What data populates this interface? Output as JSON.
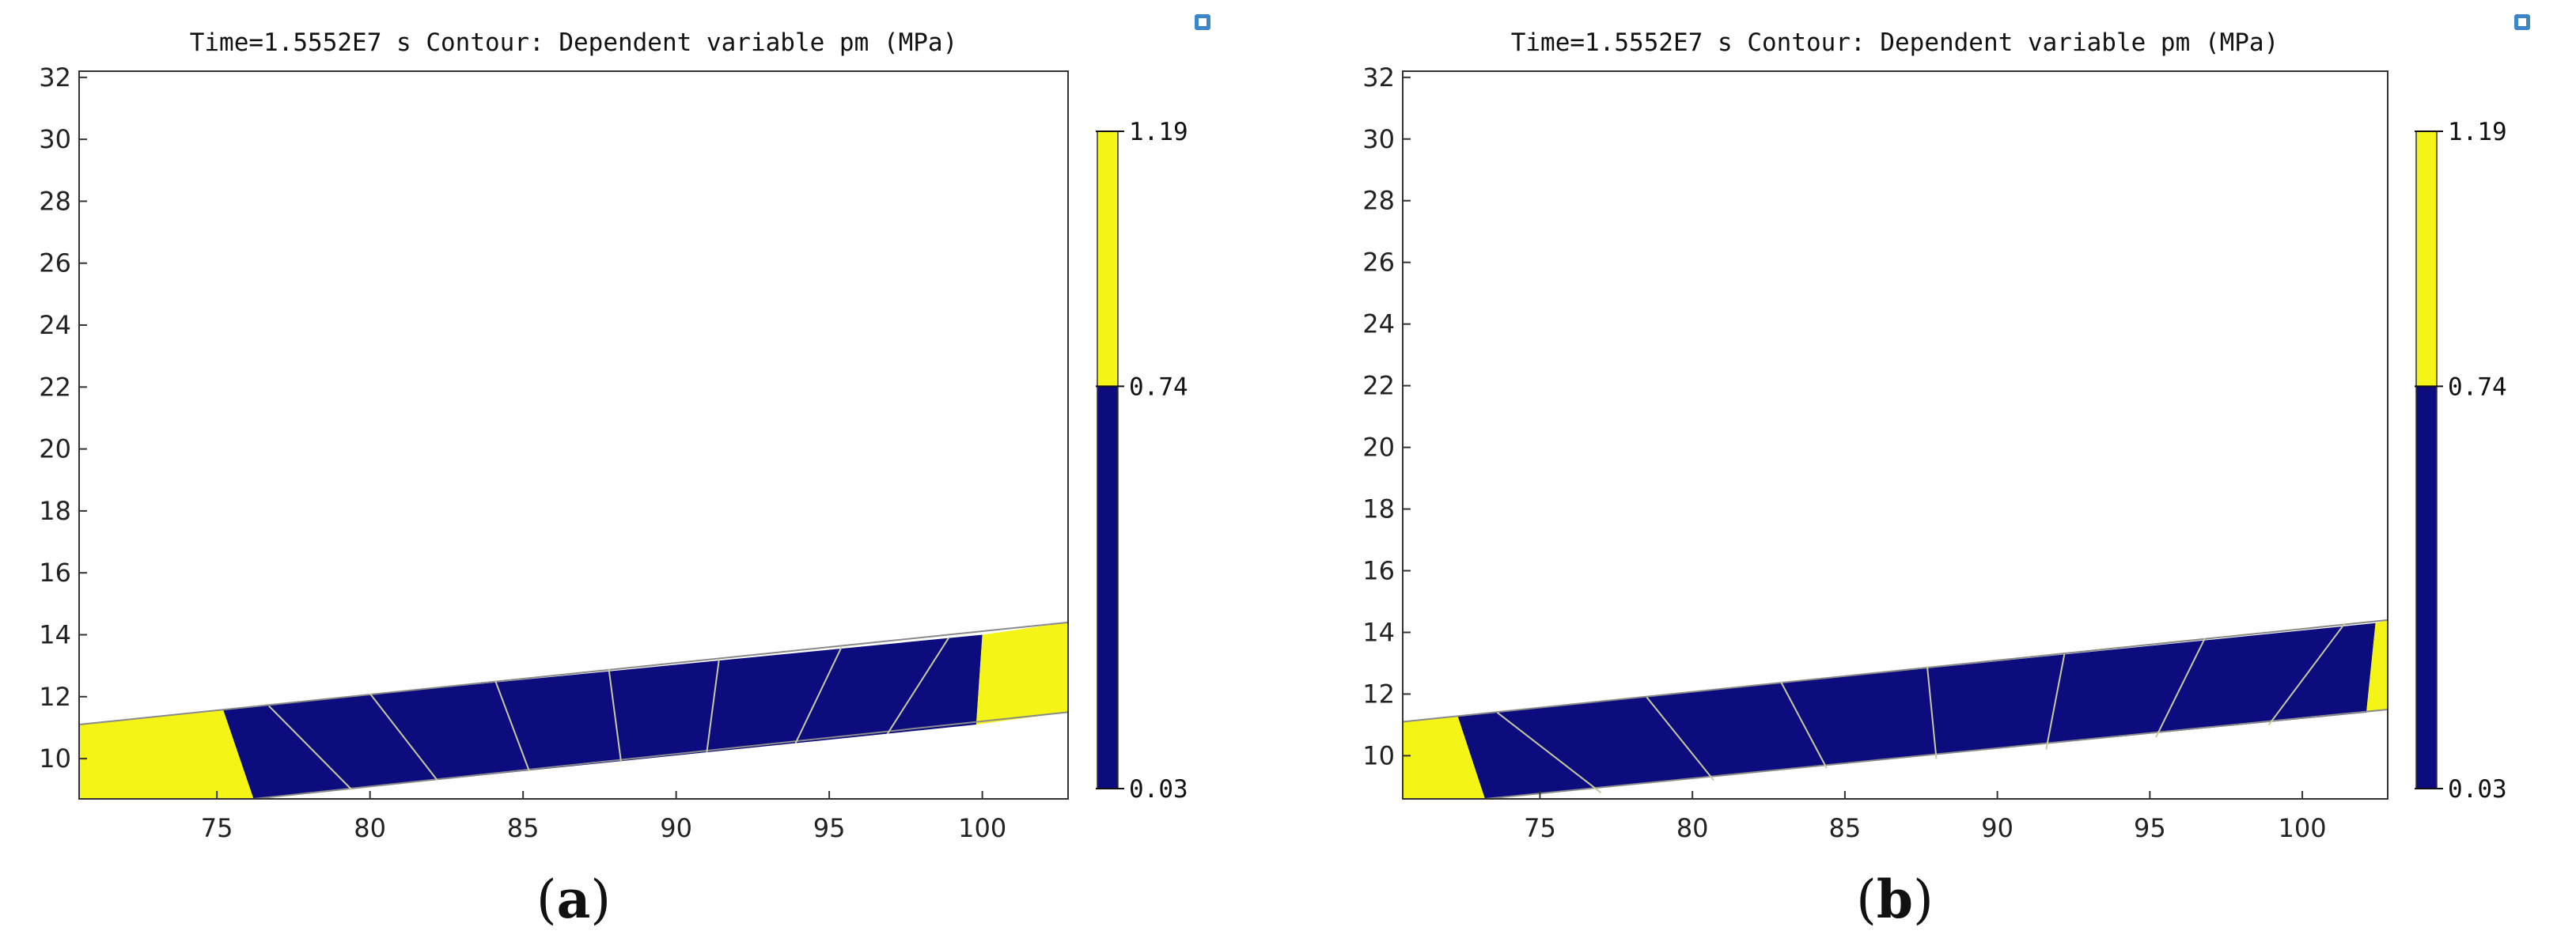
{
  "colors": {
    "high": "#f4f416",
    "low": "#0c0c7e",
    "band_edge": "#8a8a8a",
    "sub_boundary": "#c9c9a0",
    "frame": "#333333",
    "corner_icon": "#3a86c8"
  },
  "chart_data": [
    {
      "type": "contour",
      "panel": "a",
      "panel_label": "a",
      "title": "Time=1.5552E7 s   Contour: Dependent variable pm (MPa)",
      "xlabel": "",
      "ylabel": "",
      "xlim": [
        70.5,
        102.8
      ],
      "ylim": [
        8.7,
        32.2
      ],
      "xticks": [
        75,
        80,
        85,
        90,
        95,
        100
      ],
      "yticks": [
        10,
        12,
        14,
        16,
        18,
        20,
        22,
        24,
        26,
        28,
        30,
        32
      ],
      "colorbar": {
        "min": 0.03,
        "mid": 0.74,
        "max": 1.19,
        "labels": [
          "1.19",
          "0.74",
          "0.03"
        ]
      },
      "band": {
        "top_left": [
          70.5,
          11.1
        ],
        "top_right": [
          102.8,
          14.4
        ],
        "bottom_left": [
          76.2,
          8.7
        ],
        "bottom_right": [
          102.8,
          11.5
        ]
      },
      "front_left": {
        "top": [
          75.2,
          11.6
        ],
        "bottom": [
          76.2,
          8.7
        ]
      },
      "front_right": {
        "top": [
          100.0,
          14.0
        ],
        "bottom": [
          99.8,
          11.1
        ]
      },
      "sub_boundaries": [
        [
          [
            76.7,
            11.7
          ],
          [
            79.4,
            9.0
          ]
        ],
        [
          [
            80.0,
            12.1
          ],
          [
            82.2,
            9.3
          ]
        ],
        [
          [
            84.1,
            12.5
          ],
          [
            85.2,
            9.6
          ]
        ],
        [
          [
            87.8,
            12.9
          ],
          [
            88.2,
            9.9
          ]
        ],
        [
          [
            91.4,
            13.2
          ],
          [
            91.0,
            10.2
          ]
        ],
        [
          [
            95.4,
            13.6
          ],
          [
            93.9,
            10.5
          ]
        ],
        [
          [
            98.9,
            13.9
          ],
          [
            96.9,
            10.8
          ]
        ]
      ]
    },
    {
      "type": "contour",
      "panel": "b",
      "panel_label": "b",
      "title": "Time=1.5552E7 s   Contour: Dependent variable pm (MPa)",
      "xlabel": "",
      "ylabel": "",
      "xlim": [
        70.5,
        102.8
      ],
      "ylim": [
        8.6,
        32.2
      ],
      "xticks": [
        75,
        80,
        85,
        90,
        95,
        100
      ],
      "yticks": [
        10,
        12,
        14,
        16,
        18,
        20,
        22,
        24,
        26,
        28,
        30,
        32
      ],
      "colorbar": {
        "min": 0.03,
        "mid": 0.74,
        "max": 1.19,
        "labels": [
          "1.19",
          "0.74",
          "0.03"
        ]
      },
      "band": {
        "top_left": [
          70.5,
          11.1
        ],
        "top_right": [
          102.8,
          14.4
        ],
        "bottom_left": [
          73.2,
          8.6
        ],
        "bottom_right": [
          102.8,
          11.5
        ]
      },
      "front_left": {
        "top": [
          72.3,
          11.3
        ],
        "bottom": [
          73.2,
          8.6
        ]
      },
      "front_right": {
        "top": [
          102.4,
          14.3
        ],
        "bottom": [
          102.1,
          11.4
        ]
      },
      "sub_boundaries": [
        [
          [
            73.6,
            11.4
          ],
          [
            77.0,
            8.8
          ]
        ],
        [
          [
            78.5,
            11.9
          ],
          [
            80.7,
            9.2
          ]
        ],
        [
          [
            82.9,
            12.4
          ],
          [
            84.4,
            9.6
          ]
        ],
        [
          [
            87.7,
            12.9
          ],
          [
            88.0,
            9.9
          ]
        ],
        [
          [
            92.2,
            13.3
          ],
          [
            91.6,
            10.2
          ]
        ],
        [
          [
            96.8,
            13.8
          ],
          [
            95.2,
            10.6
          ]
        ],
        [
          [
            101.4,
            14.3
          ],
          [
            98.9,
            11.0
          ]
        ]
      ]
    }
  ]
}
